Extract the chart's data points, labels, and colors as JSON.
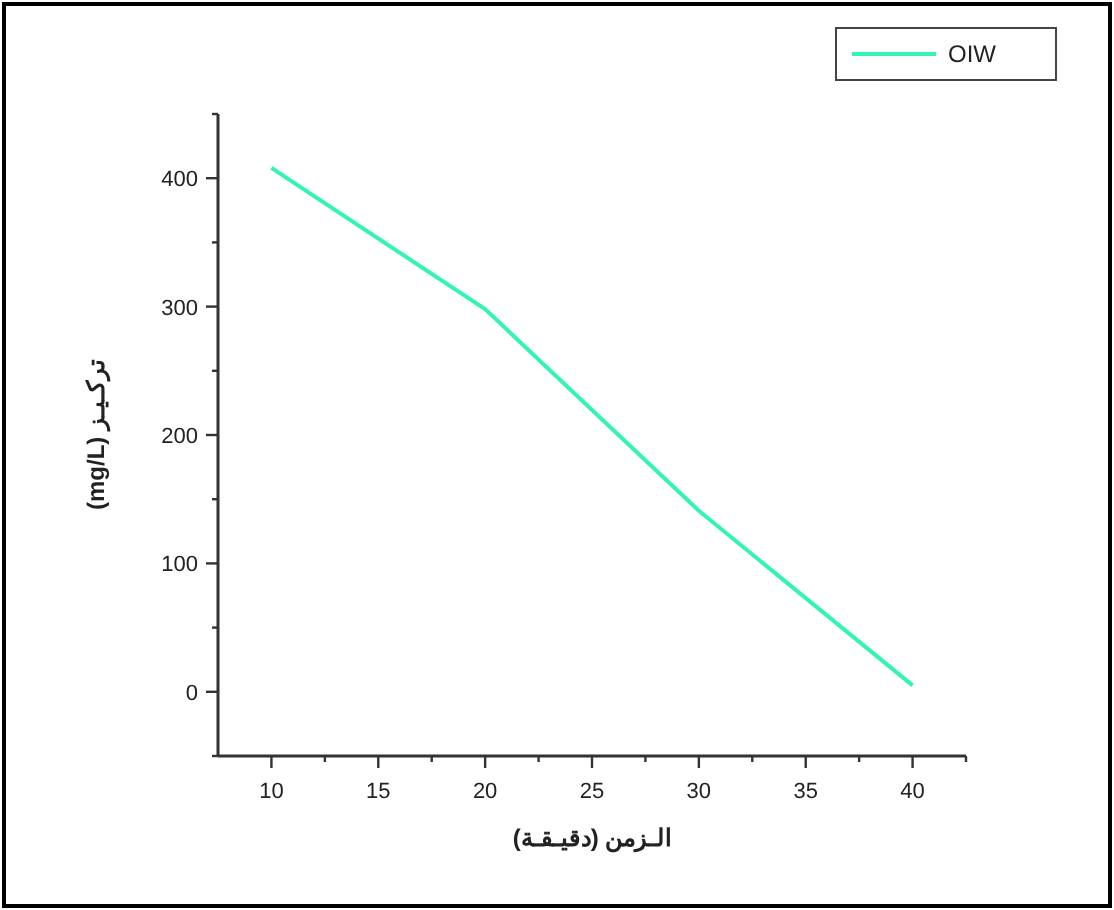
{
  "chart_data": {
    "type": "line",
    "xlabel": "الـزمن (دقيـقـة)",
    "ylabel": "تركـيـز (mg/L)",
    "x": [
      10,
      20,
      30,
      40
    ],
    "series": [
      {
        "name": "OIW",
        "color": "#33f5b0",
        "values": [
          408,
          298,
          141,
          5
        ]
      }
    ],
    "xlim": [
      7.5,
      42.5
    ],
    "xticks": [
      10,
      {
        "value": 12.5,
        "label": null
      },
      15,
      {
        "value": 17.5,
        "label": null
      },
      20,
      {
        "value": 22.5,
        "label": null
      },
      25,
      {
        "value": 27.5,
        "label": null
      },
      30,
      {
        "value": 32.5,
        "label": null
      },
      35,
      {
        "value": 37.5,
        "label": null
      },
      40,
      {
        "value": 42.5,
        "label": null
      }
    ],
    "ylim": [
      -50,
      450
    ],
    "yticks": [
      {
        "value": -50,
        "label": null
      },
      0,
      {
        "value": 50,
        "label": null
      },
      100,
      {
        "value": 150,
        "label": null
      },
      200,
      {
        "value": 250,
        "label": null
      },
      300,
      {
        "value": 350,
        "label": null
      },
      400,
      {
        "value": 450,
        "label": null
      }
    ],
    "grid": false,
    "legend": "top right",
    "marker": "none",
    "line_style": "solid"
  }
}
